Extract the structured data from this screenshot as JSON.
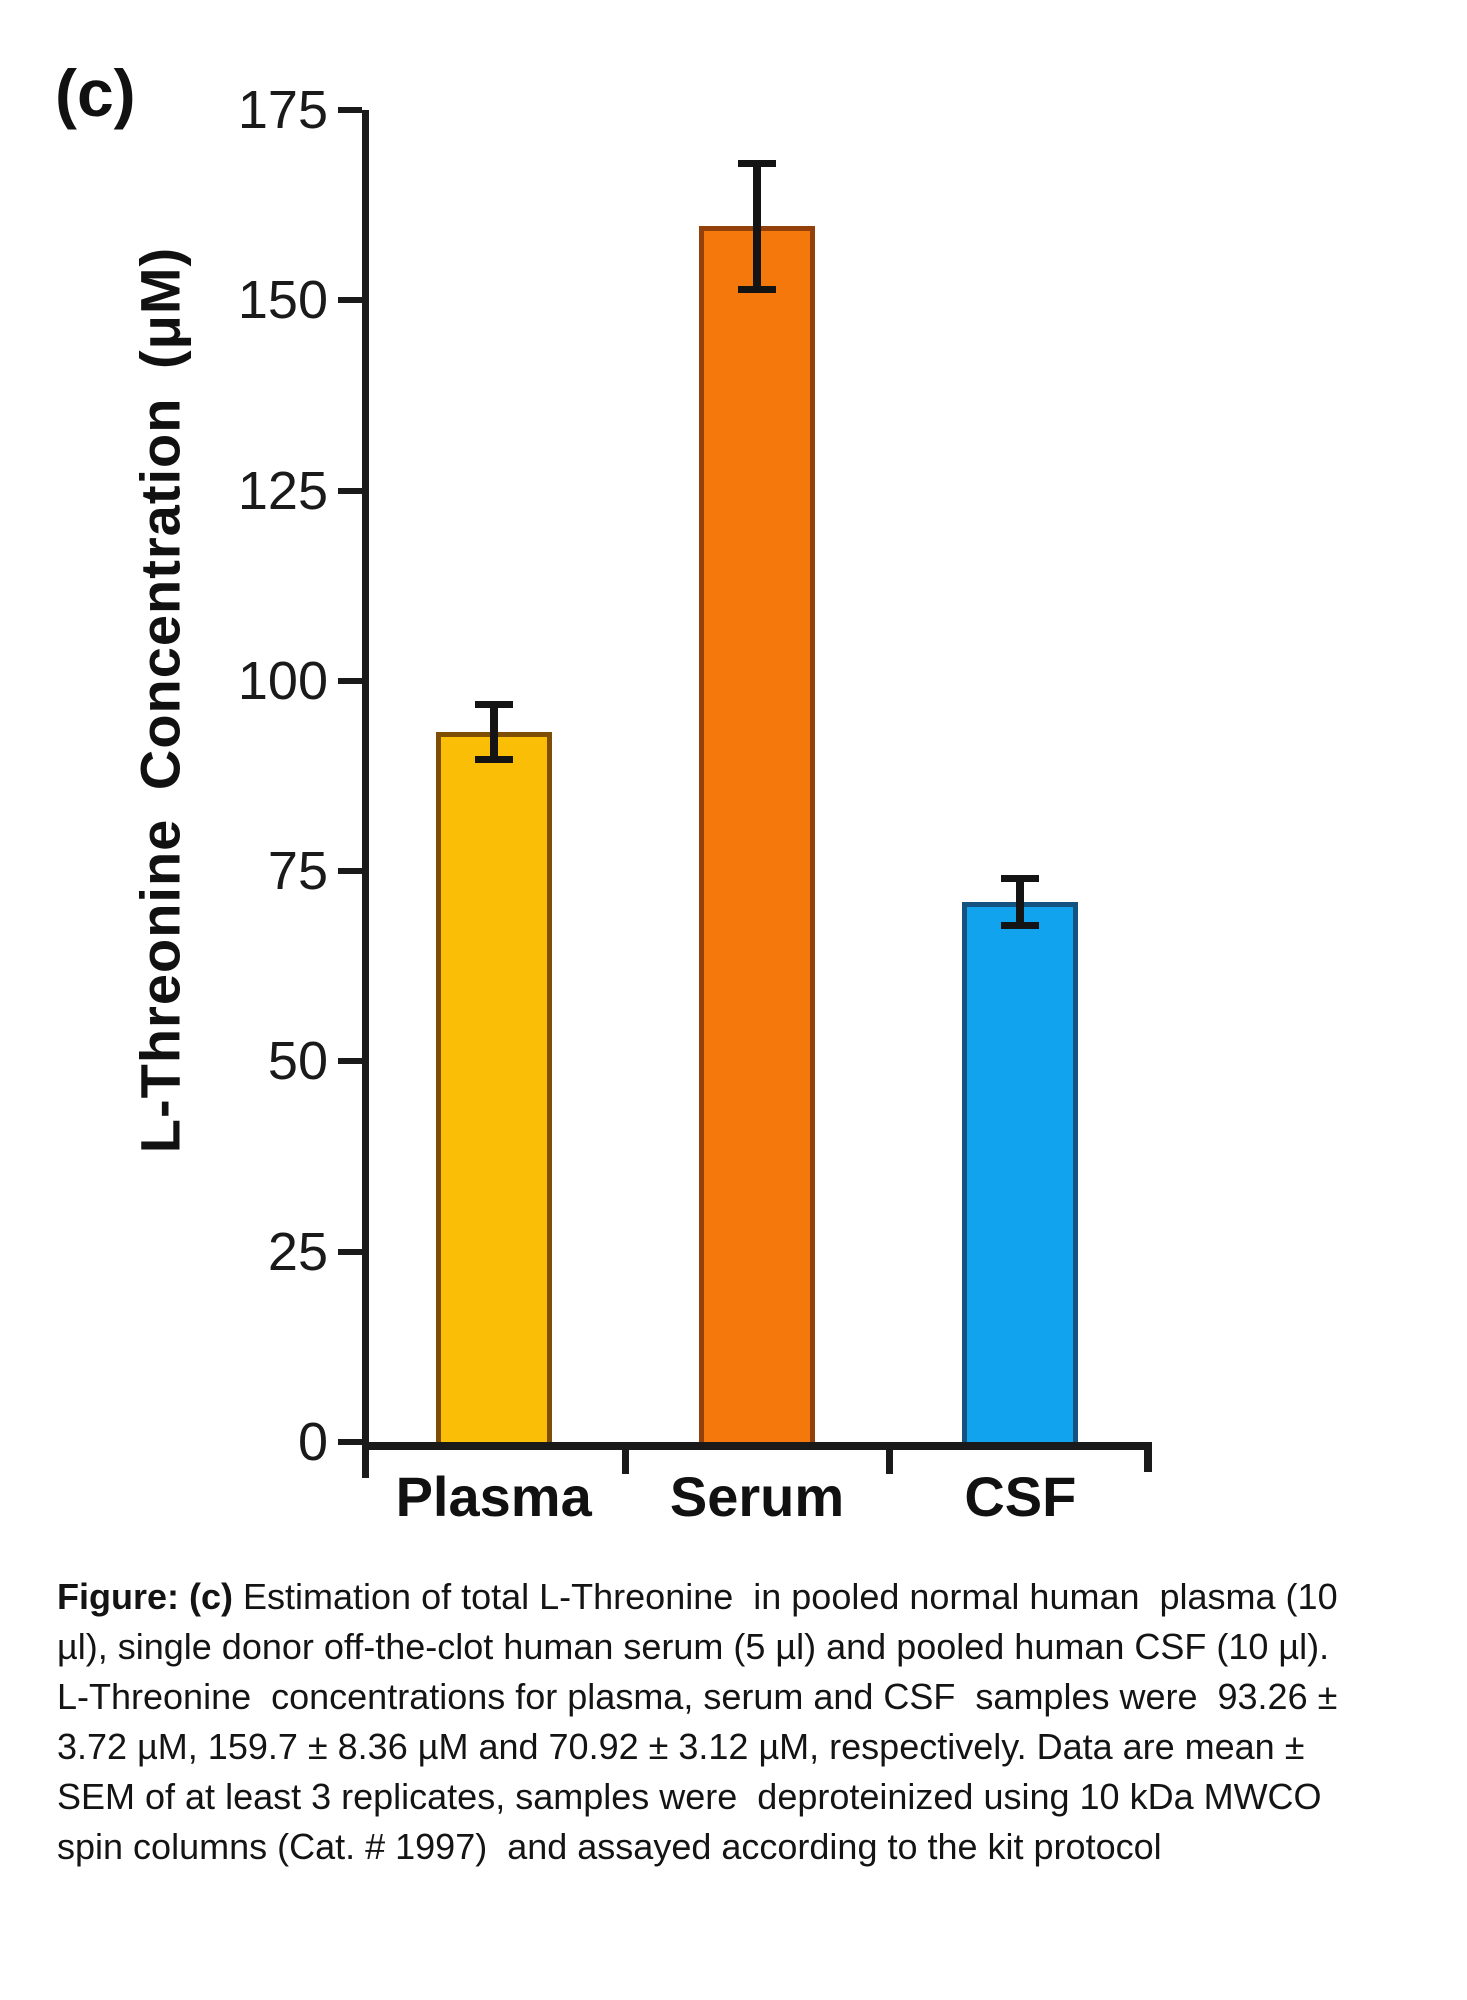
{
  "panel_label": "(c)",
  "chart_data": {
    "type": "bar",
    "categories": [
      "Plasma",
      "Serum",
      "CSF"
    ],
    "values": [
      93.26,
      159.7,
      70.92
    ],
    "errors": [
      3.72,
      8.36,
      3.12
    ],
    "error_type": "SEM",
    "bar_fill_colors": [
      "#FBBE06",
      "#F5780C",
      "#12A3EF"
    ],
    "bar_border_colors": [
      "#7E4E04",
      "#93400A",
      "#14537F"
    ],
    "title": "",
    "xlabel": "",
    "ylabel": "L-Threonine Concentration (μM)",
    "yticks": [
      0,
      25,
      50,
      75,
      100,
      125,
      150,
      175
    ],
    "ylim": [
      0,
      175
    ],
    "grid": false,
    "legend": false,
    "axis_color": "#1a1a1a"
  },
  "caption": {
    "prefix_bold": "Figure: (c)",
    "lines": [
      " Estimation of total L-Threonine  in pooled normal human  plasma (10",
      "µl), single donor off-the-clot human serum (5 µl) and pooled human CSF (10 µl).",
      "L-Threonine  concentrations for plasma, serum and CSF  samples were  93.26 ±",
      "3.72 µM, 159.7 ± 8.36 µM and 70.92 ± 3.12 µM, respectively. Data are mean ±",
      "SEM of at least 3 replicates, samples were  deproteinized using 10 kDa MWCO",
      "spin columns (Cat. # 1997)  and assayed according to the kit protocol"
    ]
  }
}
